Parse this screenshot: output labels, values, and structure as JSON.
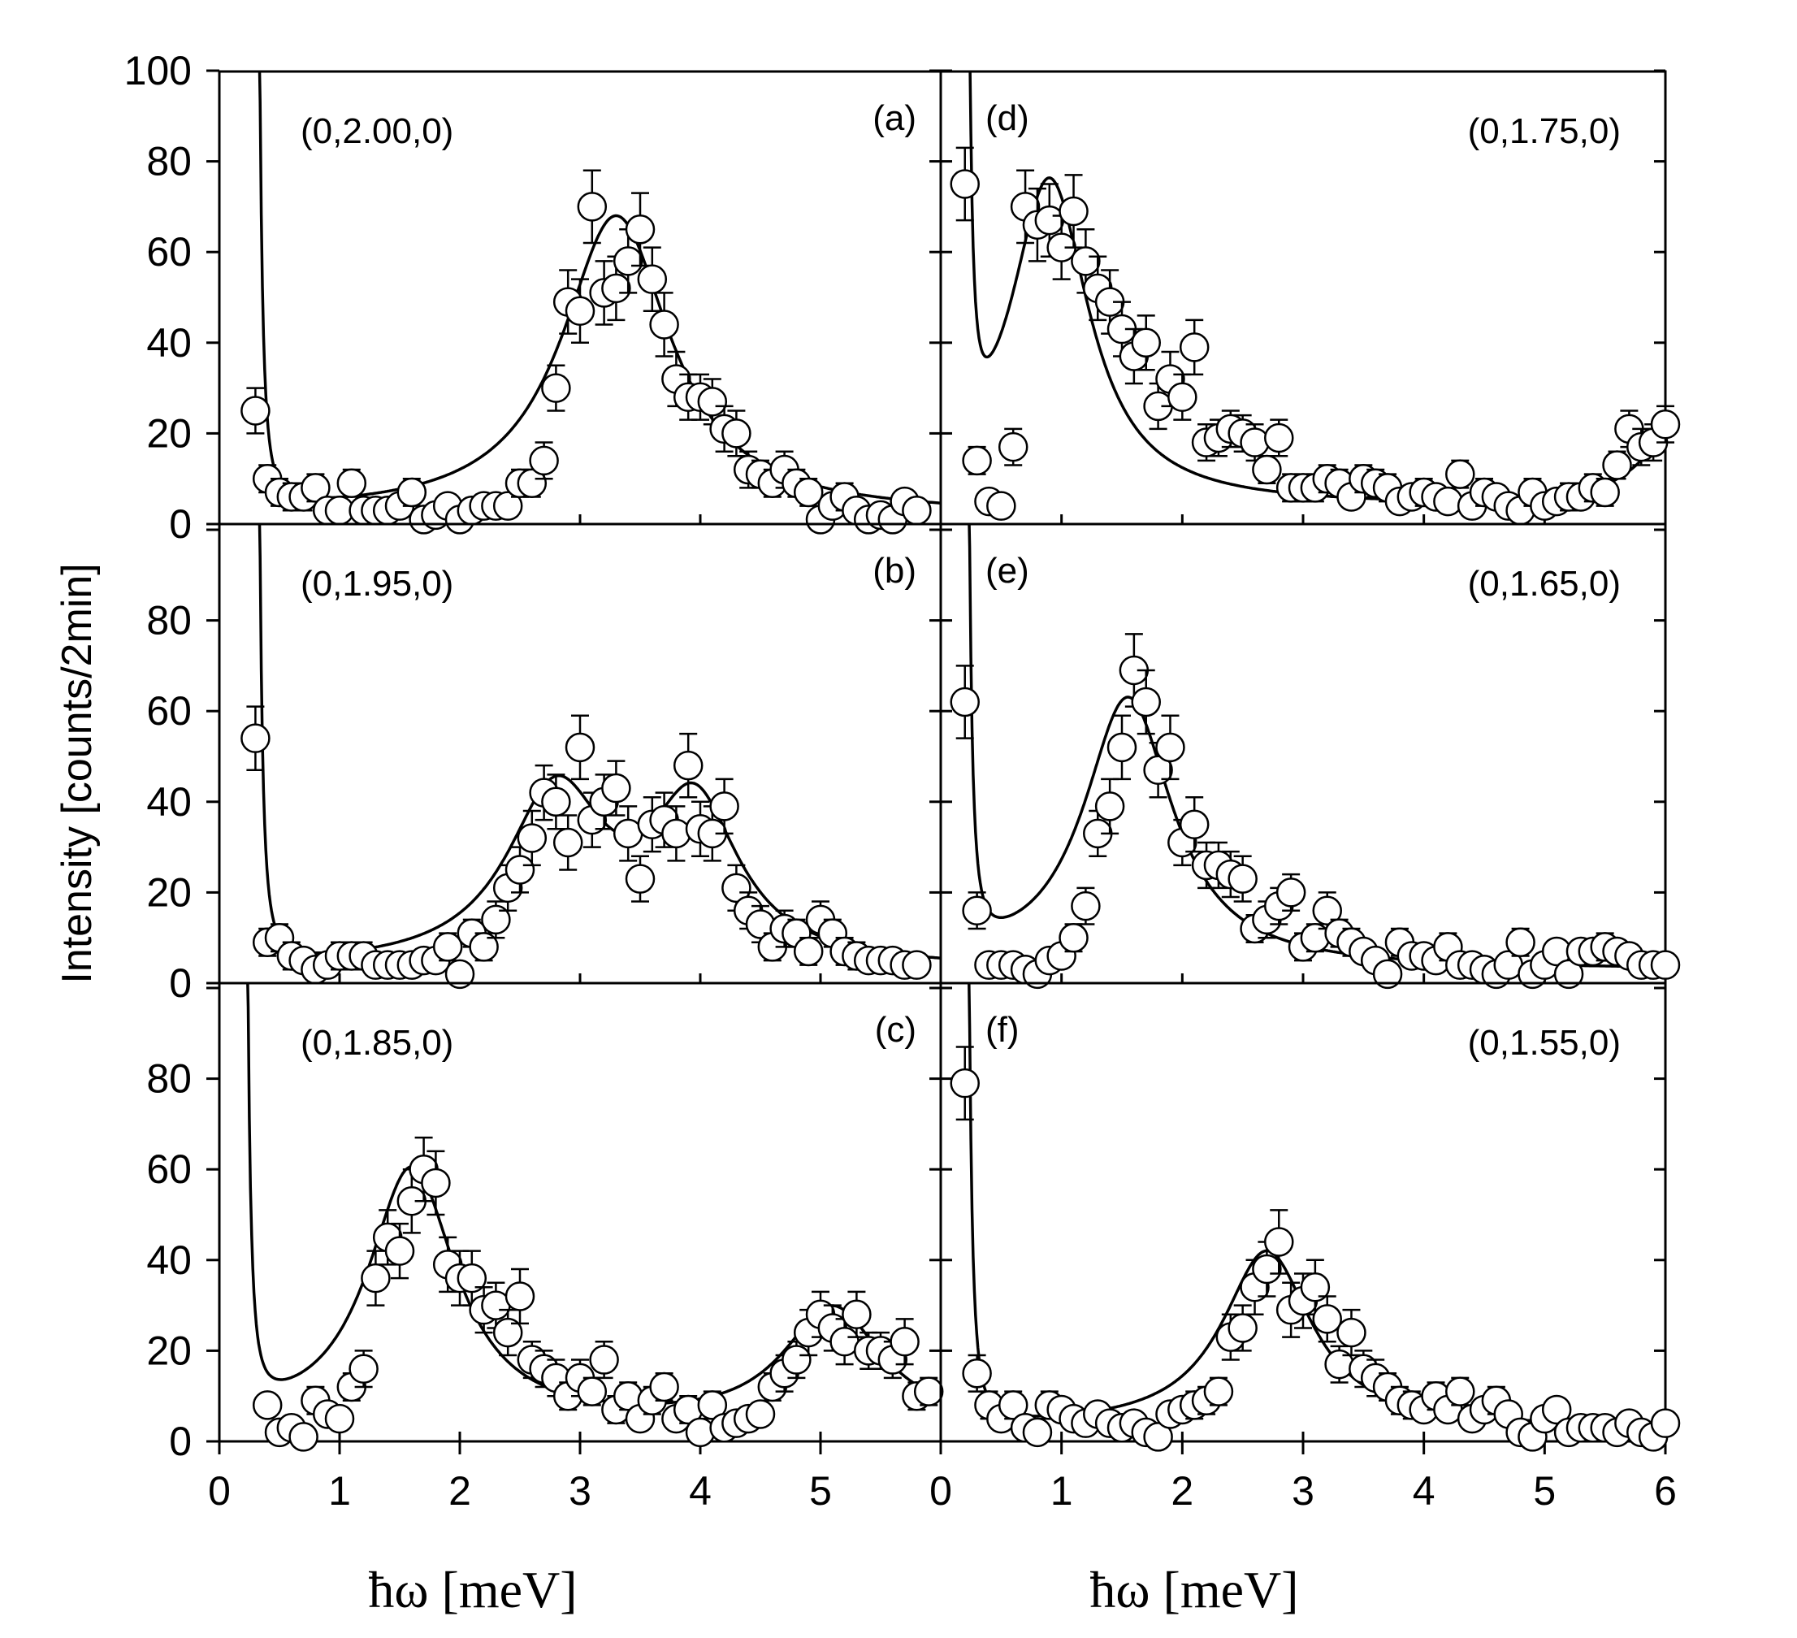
{
  "figure": {
    "ylabel": "Intensity [counts/2min]",
    "xlabel_left": "ħω [meV]",
    "xlabel_right": "ħω [meV]"
  },
  "chart_data": [
    {
      "type": "scatter",
      "panel": "(a)",
      "title": "(0,2.00,0)",
      "xlim": [
        0,
        6
      ],
      "ylim": [
        0,
        100
      ],
      "xticks": [
        "0",
        "1",
        "2",
        "3",
        "4",
        "5"
      ],
      "yticks": [
        "0",
        "20",
        "40",
        "60",
        "80",
        "100"
      ],
      "x": [
        0.3,
        0.4,
        0.5,
        0.6,
        0.7,
        0.8,
        0.9,
        1.0,
        1.1,
        1.2,
        1.3,
        1.4,
        1.5,
        1.6,
        1.7,
        1.8,
        1.9,
        2.0,
        2.1,
        2.2,
        2.3,
        2.4,
        2.5,
        2.6,
        2.7,
        2.8,
        2.9,
        3.0,
        3.1,
        3.2,
        3.3,
        3.4,
        3.5,
        3.6,
        3.7,
        3.8,
        3.9,
        4.0,
        4.1,
        4.2,
        4.3,
        4.4,
        4.5,
        4.6,
        4.7,
        4.8,
        4.9,
        5.0,
        5.1,
        5.2,
        5.3,
        5.4,
        5.5,
        5.6,
        5.7,
        5.8
      ],
      "y": [
        25,
        10,
        7,
        6,
        6,
        8,
        3,
        3,
        9,
        3,
        3,
        3,
        4,
        7,
        1,
        2,
        4,
        1,
        3,
        4,
        4,
        4,
        9,
        9,
        14,
        30,
        49,
        47,
        70,
        51,
        52,
        58,
        65,
        54,
        44,
        32,
        28,
        28,
        27,
        21,
        20,
        12,
        11,
        9,
        12,
        9,
        7,
        1,
        4,
        6,
        3,
        1,
        2,
        1,
        5,
        3
      ],
      "err": [
        5,
        3,
        3,
        3,
        3,
        3,
        2,
        2,
        3,
        2,
        2,
        2,
        2,
        3,
        1,
        2,
        2,
        1,
        2,
        2,
        2,
        2,
        3,
        3,
        4,
        5,
        7,
        7,
        8,
        7,
        7,
        7,
        8,
        7,
        7,
        6,
        5,
        5,
        5,
        5,
        5,
        4,
        3,
        3,
        4,
        3,
        3,
        1,
        2,
        3,
        2,
        1,
        1,
        1,
        2,
        2
      ],
      "fit": {
        "center": 3.3,
        "width": 0.55,
        "amp": 66,
        "bg": 2,
        "elastic_x0": 0.3
      }
    },
    {
      "type": "scatter",
      "panel": "(b)",
      "title": "(0,1.95,0)",
      "xlim": [
        0,
        6
      ],
      "ylim": [
        0,
        100
      ],
      "xticks": [
        "0",
        "1",
        "2",
        "3",
        "4",
        "5"
      ],
      "yticks": [
        "0",
        "20",
        "40",
        "60",
        "80"
      ],
      "x": [
        0.3,
        0.4,
        0.5,
        0.6,
        0.7,
        0.8,
        0.9,
        1.0,
        1.1,
        1.2,
        1.3,
        1.4,
        1.5,
        1.6,
        1.7,
        1.8,
        1.9,
        2.0,
        2.1,
        2.2,
        2.3,
        2.4,
        2.5,
        2.6,
        2.7,
        2.8,
        2.9,
        3.0,
        3.1,
        3.2,
        3.3,
        3.4,
        3.5,
        3.6,
        3.7,
        3.8,
        3.9,
        4.0,
        4.1,
        4.2,
        4.3,
        4.4,
        4.5,
        4.6,
        4.7,
        4.8,
        4.9,
        5.0,
        5.1,
        5.2,
        5.3,
        5.4,
        5.5,
        5.6,
        5.7,
        5.8
      ],
      "y": [
        54,
        9,
        10,
        6,
        5,
        3,
        4,
        6,
        6,
        6,
        4,
        4,
        4,
        4,
        5,
        5,
        8,
        2,
        11,
        8,
        14,
        21,
        25,
        32,
        42,
        40,
        31,
        52,
        36,
        40,
        43,
        33,
        23,
        35,
        36,
        33,
        48,
        34,
        33,
        39,
        21,
        16,
        13,
        8,
        12,
        11,
        7,
        14,
        11,
        7,
        6,
        5,
        5,
        5,
        4,
        4
      ],
      "err": [
        7,
        3,
        3,
        3,
        2,
        2,
        2,
        3,
        3,
        3,
        2,
        2,
        2,
        2,
        2,
        2,
        3,
        1,
        3,
        3,
        4,
        5,
        5,
        6,
        6,
        6,
        6,
        7,
        6,
        6,
        6,
        6,
        5,
        6,
        6,
        6,
        7,
        6,
        6,
        6,
        5,
        4,
        4,
        3,
        4,
        3,
        3,
        4,
        3,
        3,
        3,
        2,
        2,
        2,
        2,
        2
      ],
      "fit": {
        "peaks": [
          {
            "center": 2.8,
            "width": 0.5,
            "amp": 38
          },
          {
            "center": 3.95,
            "width": 0.45,
            "amp": 35
          }
        ],
        "bg": 3,
        "elastic_x0": 0.3
      }
    },
    {
      "type": "scatter",
      "panel": "(c)",
      "title": "(0,1.85,0)",
      "xlim": [
        0,
        6
      ],
      "ylim": [
        0,
        100
      ],
      "xticks": [
        "0",
        "1",
        "2",
        "3",
        "4",
        "5"
      ],
      "yticks": [
        "0",
        "20",
        "40",
        "60",
        "80"
      ],
      "x": [
        0.4,
        0.5,
        0.6,
        0.7,
        0.8,
        0.9,
        1.0,
        1.1,
        1.2,
        1.3,
        1.4,
        1.5,
        1.6,
        1.7,
        1.8,
        1.9,
        2.0,
        2.1,
        2.2,
        2.3,
        2.4,
        2.5,
        2.6,
        2.7,
        2.8,
        2.9,
        3.0,
        3.1,
        3.2,
        3.3,
        3.4,
        3.5,
        3.6,
        3.7,
        3.8,
        3.9,
        4.0,
        4.1,
        4.2,
        4.3,
        4.4,
        4.5,
        4.6,
        4.7,
        4.8,
        4.9,
        5.0,
        5.1,
        5.2,
        5.3,
        5.4,
        5.5,
        5.6,
        5.7,
        5.8,
        5.9
      ],
      "y": [
        8,
        2,
        3,
        1,
        9,
        6,
        5,
        12,
        16,
        36,
        45,
        42,
        53,
        60,
        57,
        39,
        36,
        36,
        29,
        30,
        24,
        32,
        18,
        16,
        14,
        10,
        14,
        11,
        18,
        7,
        10,
        5,
        9,
        12,
        5,
        7,
        2,
        8,
        3,
        4,
        5,
        6,
        12,
        15,
        18,
        24,
        28,
        25,
        22,
        28,
        20,
        20,
        18,
        22,
        10,
        11
      ],
      "err": [
        2,
        1,
        1,
        1,
        3,
        2,
        2,
        3,
        4,
        6,
        6,
        6,
        7,
        7,
        7,
        6,
        6,
        6,
        5,
        5,
        5,
        6,
        4,
        4,
        4,
        3,
        4,
        3,
        4,
        3,
        3,
        2,
        3,
        3,
        2,
        3,
        1,
        3,
        2,
        2,
        2,
        2,
        3,
        4,
        4,
        5,
        5,
        5,
        5,
        5,
        4,
        4,
        4,
        5,
        3,
        3
      ],
      "fit": {
        "peaks": [
          {
            "center": 1.6,
            "width": 0.45,
            "amp": 57
          },
          {
            "center": 5.1,
            "width": 0.5,
            "amp": 26
          }
        ],
        "bg": 3,
        "elastic_x0": 0.2
      }
    },
    {
      "type": "scatter",
      "panel": "(d)",
      "title": "(0,1.75,0)",
      "xlim": [
        0,
        6
      ],
      "ylim": [
        0,
        100
      ],
      "xticks": [
        "0",
        "1",
        "2",
        "3",
        "4",
        "5",
        "6"
      ],
      "yticks": [],
      "x": [
        0.2,
        0.3,
        0.4,
        0.5,
        0.6,
        0.7,
        0.8,
        0.9,
        1.0,
        1.1,
        1.2,
        1.3,
        1.4,
        1.5,
        1.6,
        1.7,
        1.8,
        1.9,
        2.0,
        2.1,
        2.2,
        2.3,
        2.4,
        2.5,
        2.6,
        2.7,
        2.8,
        2.9,
        3.0,
        3.1,
        3.2,
        3.3,
        3.4,
        3.5,
        3.6,
        3.7,
        3.8,
        3.9,
        4.0,
        4.1,
        4.2,
        4.3,
        4.4,
        4.5,
        4.6,
        4.7,
        4.8,
        4.9,
        5.0,
        5.1,
        5.2,
        5.3,
        5.4,
        5.5,
        5.6,
        5.7,
        5.8,
        5.9,
        6.0
      ],
      "y": [
        75,
        14,
        5,
        4,
        17,
        70,
        66,
        67,
        61,
        69,
        58,
        52,
        49,
        43,
        37,
        40,
        26,
        32,
        28,
        39,
        18,
        19,
        21,
        20,
        18,
        12,
        19,
        8,
        8,
        8,
        10,
        9,
        6,
        10,
        9,
        8,
        5,
        6,
        7,
        6,
        5,
        11,
        4,
        7,
        6,
        4,
        3,
        7,
        4,
        5,
        6,
        6,
        8,
        7,
        13,
        21,
        17,
        18,
        22
      ],
      "err": [
        8,
        3,
        2,
        2,
        4,
        8,
        8,
        8,
        7,
        8,
        7,
        7,
        7,
        6,
        6,
        6,
        5,
        6,
        5,
        6,
        4,
        4,
        4,
        4,
        4,
        3,
        4,
        3,
        3,
        3,
        3,
        3,
        2,
        3,
        3,
        3,
        2,
        2,
        3,
        2,
        2,
        3,
        2,
        3,
        2,
        2,
        2,
        3,
        2,
        2,
        3,
        2,
        3,
        3,
        3,
        4,
        4,
        4,
        4
      ],
      "fit": {
        "center": 0.9,
        "width": 0.4,
        "amp": 72,
        "bg": 4,
        "elastic_x0": 0.2,
        "rising_edge": 6.0
      }
    },
    {
      "type": "scatter",
      "panel": "(e)",
      "title": "(0,1.65,0)",
      "xlim": [
        0,
        6
      ],
      "ylim": [
        0,
        100
      ],
      "xticks": [
        "0",
        "1",
        "2",
        "3",
        "4",
        "5",
        "6"
      ],
      "yticks": [],
      "x": [
        0.2,
        0.3,
        0.4,
        0.5,
        0.6,
        0.7,
        0.8,
        0.9,
        1.0,
        1.1,
        1.2,
        1.3,
        1.4,
        1.5,
        1.6,
        1.7,
        1.8,
        1.9,
        2.0,
        2.1,
        2.2,
        2.3,
        2.4,
        2.5,
        2.6,
        2.7,
        2.8,
        2.9,
        3.0,
        3.1,
        3.2,
        3.3,
        3.4,
        3.5,
        3.6,
        3.7,
        3.8,
        3.9,
        4.0,
        4.1,
        4.2,
        4.3,
        4.4,
        4.5,
        4.6,
        4.7,
        4.8,
        4.9,
        5.0,
        5.1,
        5.2,
        5.3,
        5.4,
        5.5,
        5.6,
        5.7,
        5.8,
        5.9,
        6.0
      ],
      "y": [
        62,
        16,
        4,
        4,
        4,
        3,
        2,
        5,
        6,
        10,
        17,
        33,
        39,
        52,
        69,
        62,
        47,
        52,
        31,
        35,
        26,
        26,
        24,
        23,
        12,
        14,
        17,
        20,
        8,
        10,
        16,
        11,
        9,
        7,
        5,
        2,
        9,
        6,
        6,
        5,
        8,
        4,
        4,
        3,
        2,
        4,
        9,
        2,
        4,
        7,
        2,
        7,
        7,
        8,
        7,
        6,
        4,
        4,
        4
      ],
      "err": [
        8,
        4,
        2,
        2,
        2,
        2,
        1,
        2,
        2,
        3,
        4,
        5,
        6,
        7,
        8,
        7,
        6,
        7,
        5,
        6,
        5,
        5,
        5,
        5,
        3,
        4,
        4,
        4,
        3,
        3,
        4,
        3,
        3,
        2,
        2,
        1,
        3,
        2,
        2,
        2,
        3,
        2,
        2,
        2,
        1,
        2,
        3,
        1,
        2,
        2,
        1,
        2,
        2,
        3,
        2,
        2,
        2,
        2,
        2
      ],
      "fit": {
        "center": 1.55,
        "width": 0.45,
        "amp": 60,
        "bg": 3,
        "elastic_x0": 0.2
      }
    },
    {
      "type": "scatter",
      "panel": "(f)",
      "title": "(0,1.55,0)",
      "xlim": [
        0,
        6
      ],
      "ylim": [
        0,
        100
      ],
      "xticks": [
        "0",
        "1",
        "2",
        "3",
        "4",
        "5",
        "6"
      ],
      "yticks": [],
      "x": [
        0.2,
        0.3,
        0.4,
        0.5,
        0.6,
        0.7,
        0.8,
        0.9,
        1.0,
        1.1,
        1.2,
        1.3,
        1.4,
        1.5,
        1.6,
        1.7,
        1.8,
        1.9,
        2.0,
        2.1,
        2.2,
        2.3,
        2.4,
        2.5,
        2.6,
        2.7,
        2.8,
        2.9,
        3.0,
        3.1,
        3.2,
        3.3,
        3.4,
        3.5,
        3.6,
        3.7,
        3.8,
        3.9,
        4.0,
        4.1,
        4.2,
        4.3,
        4.4,
        4.5,
        4.6,
        4.7,
        4.8,
        4.9,
        5.0,
        5.1,
        5.2,
        5.3,
        5.4,
        5.5,
        5.6,
        5.7,
        5.8,
        5.9,
        6.0
      ],
      "y": [
        79,
        15,
        8,
        5,
        8,
        3,
        2,
        8,
        7,
        5,
        4,
        6,
        4,
        3,
        4,
        2,
        1,
        6,
        7,
        8,
        9,
        11,
        23,
        25,
        34,
        38,
        44,
        29,
        31,
        34,
        27,
        17,
        24,
        16,
        14,
        12,
        9,
        8,
        7,
        10,
        7,
        11,
        5,
        7,
        9,
        6,
        2,
        1,
        5,
        7,
        2,
        3,
        3,
        3,
        2,
        4,
        2,
        1,
        4
      ],
      "err": [
        8,
        4,
        3,
        2,
        3,
        2,
        1,
        3,
        2,
        2,
        2,
        2,
        2,
        2,
        2,
        1,
        1,
        2,
        2,
        3,
        3,
        3,
        5,
        5,
        6,
        6,
        7,
        6,
        6,
        6,
        5,
        4,
        5,
        4,
        4,
        3,
        3,
        3,
        2,
        3,
        2,
        3,
        2,
        2,
        3,
        2,
        1,
        1,
        2,
        2,
        1,
        1,
        1,
        1,
        1,
        2,
        1,
        1,
        2
      ],
      "fit": {
        "center": 2.7,
        "width": 0.45,
        "amp": 39,
        "bg": 3,
        "elastic_x0": 0.2
      }
    }
  ]
}
